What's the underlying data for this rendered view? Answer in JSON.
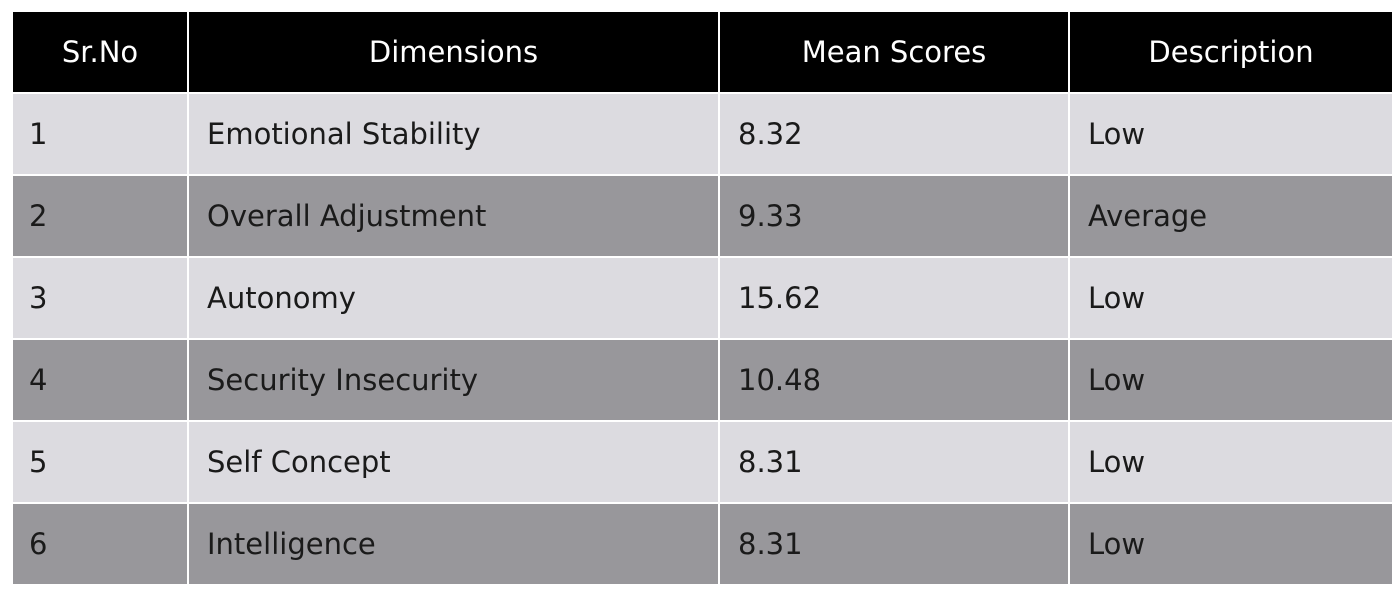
{
  "table": {
    "headers": [
      "Sr.No",
      "Dimensions",
      "Mean Scores",
      "Description"
    ],
    "rows": [
      {
        "sr": "1",
        "dimension": "Emotional Stability",
        "mean": "8.32",
        "description": "Low"
      },
      {
        "sr": "2",
        "dimension": "Overall Adjustment",
        "mean": "9.33",
        "description": "Average"
      },
      {
        "sr": "3",
        "dimension": "Autonomy",
        "mean": "15.62",
        "description": "Low"
      },
      {
        "sr": "4",
        "dimension": "Security Insecurity",
        "mean": "10.48",
        "description": "Low"
      },
      {
        "sr": "5",
        "dimension": "Self Concept",
        "mean": "8.31",
        "description": "Low"
      },
      {
        "sr": "6",
        "dimension": "Intelligence",
        "mean": "8.31",
        "description": "Low"
      }
    ]
  },
  "colors": {
    "header_bg": "#000000",
    "header_text": "#ffffff",
    "row_light": "#dcdbe0",
    "row_dark": "#98979b"
  }
}
